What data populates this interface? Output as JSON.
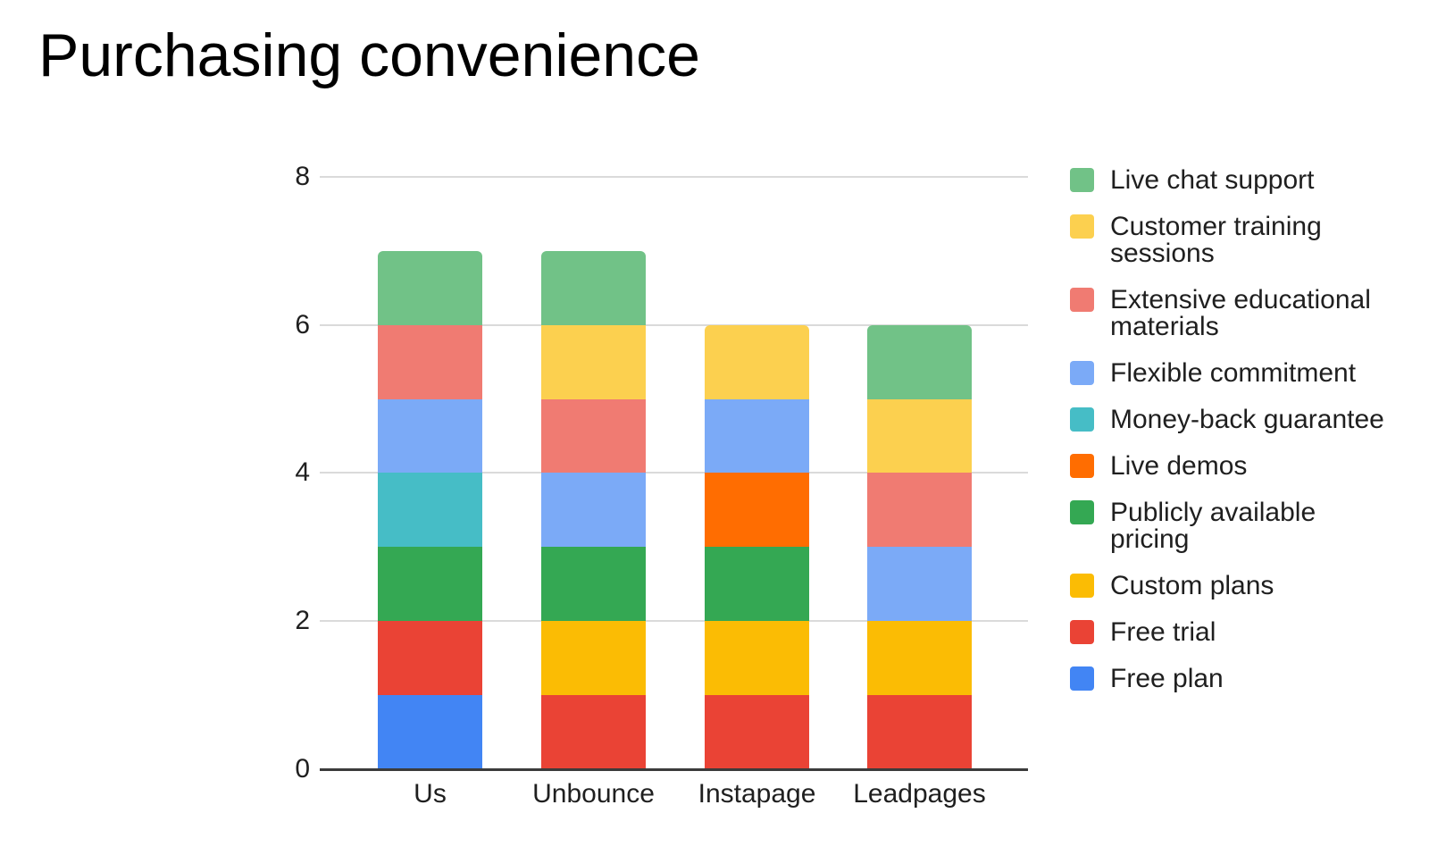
{
  "title": "Purchasing convenience",
  "chart_data": {
    "type": "bar",
    "subtype": "stacked-vertical",
    "title": "Purchasing convenience",
    "categories": [
      "Us",
      "Unbounce",
      "Instapage",
      "Leadpages"
    ],
    "series": [
      {
        "name": "Free plan",
        "color": "#4285F4",
        "values": [
          1,
          0,
          0,
          0
        ]
      },
      {
        "name": "Free trial",
        "color": "#EA4335",
        "values": [
          1,
          1,
          1,
          1
        ]
      },
      {
        "name": "Custom plans",
        "color": "#FBBC04",
        "values": [
          0,
          1,
          1,
          1
        ]
      },
      {
        "name": "Publicly available pricing",
        "color": "#34A853",
        "values": [
          1,
          1,
          1,
          0
        ]
      },
      {
        "name": "Live demos",
        "color": "#FF6D01",
        "values": [
          0,
          0,
          1,
          0
        ]
      },
      {
        "name": "Money-back guarantee",
        "color": "#46BDC6",
        "values": [
          1,
          0,
          0,
          0
        ]
      },
      {
        "name": "Flexible commitment",
        "color": "#7BAAF7",
        "values": [
          1,
          1,
          1,
          1
        ]
      },
      {
        "name": "Extensive educational materials",
        "color": "#F07B72",
        "values": [
          1,
          1,
          0,
          1
        ]
      },
      {
        "name": "Customer training sessions",
        "color": "#FCD04F",
        "values": [
          0,
          1,
          1,
          1
        ]
      },
      {
        "name": "Live chat support",
        "color": "#71C287",
        "values": [
          1,
          1,
          0,
          1
        ]
      }
    ],
    "stack_totals": [
      7,
      7,
      6,
      6
    ],
    "stack_order": "first series at bottom",
    "y_ticks": [
      0,
      2,
      4,
      6,
      8
    ],
    "ylim": [
      0,
      8
    ],
    "grid": true,
    "legend_position": "right",
    "legend_order": "reverse of series (top-most stack color listed first)",
    "axis_color": "#3b3b3b",
    "gridline_color": "#dadada",
    "text_color": "#1f1f1f"
  }
}
